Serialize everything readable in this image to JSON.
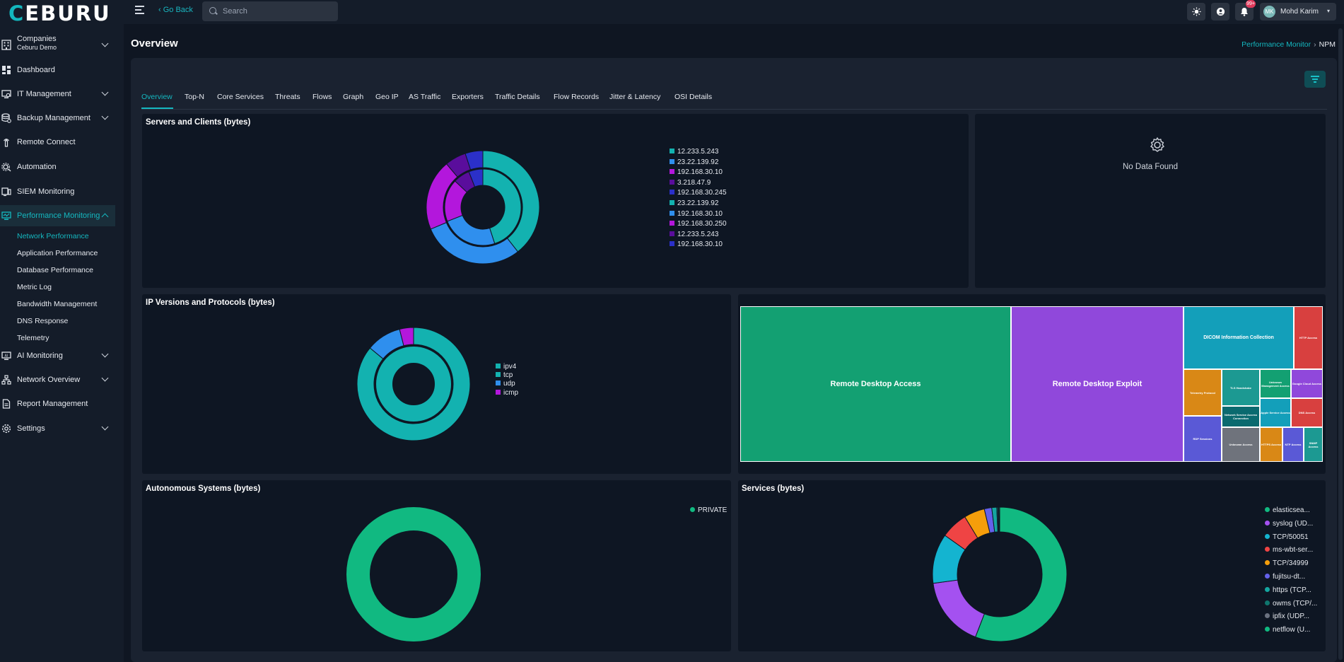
{
  "app": {
    "logo_text": "CEBURU",
    "accent": "#14b8c0"
  },
  "topbar": {
    "go_back": "‹ Go Back",
    "search_placeholder": "Search",
    "notification_count": "99+",
    "user": {
      "initials": "MK",
      "name": "Mohd Karim"
    }
  },
  "sidebar": {
    "company": {
      "title": "Companies",
      "value": "Ceburu Demo"
    },
    "items": [
      {
        "label": "Dashboard"
      },
      {
        "label": "IT Management"
      },
      {
        "label": "Backup Management"
      },
      {
        "label": "Remote Connect"
      },
      {
        "label": "Automation"
      },
      {
        "label": "SIEM Monitoring"
      },
      {
        "label": "Performance Monitoring"
      },
      {
        "label": "AI Monitoring"
      },
      {
        "label": "Network Overview"
      },
      {
        "label": "Report Management"
      },
      {
        "label": "Settings"
      }
    ],
    "sub_items": [
      {
        "label": "Network Performance"
      },
      {
        "label": "Application Performance"
      },
      {
        "label": "Database Performance"
      },
      {
        "label": "Metric Log"
      },
      {
        "label": "Bandwidth Management"
      },
      {
        "label": "DNS Response"
      },
      {
        "label": "Telemetry"
      }
    ]
  },
  "page": {
    "title": "Overview",
    "breadcrumb": {
      "parent": "Performance Monitor",
      "sep": "›",
      "current": "NPM"
    }
  },
  "tabs": [
    "Overview",
    "Top-N",
    "Core Services",
    "Threats",
    "Flows",
    "Graph",
    "Geo IP",
    "AS Traffic",
    "Exporters",
    "Traffic Details",
    "Flow Records",
    "Jitter & Latency",
    "OSI Details"
  ],
  "cards": {
    "servers_clients": {
      "title": "Servers and Clients (bytes)"
    },
    "no_data": {
      "message": "No Data Found"
    },
    "ip_versions": {
      "title": "IP Versions and Protocols (bytes)"
    },
    "autonomous": {
      "title": "Autonomous Systems (bytes)"
    },
    "services": {
      "title": "Services (bytes)"
    }
  },
  "chart_data": [
    {
      "type": "pie",
      "title": "Servers and Clients (bytes)",
      "style": "nested-donut",
      "legend_position": "right",
      "legend": [
        {
          "label": "12.233.5.243",
          "color": "#13b2b0"
        },
        {
          "label": "23.22.139.92",
          "color": "#2f8fee"
        },
        {
          "label": "192.168.30.10",
          "color": "#b317dc"
        },
        {
          "label": "3.218.47.9",
          "color": "#5a0d9c"
        },
        {
          "label": "192.168.30.245",
          "color": "#2b30c9"
        },
        {
          "label": "23.22.139.92",
          "color": "#13b2b0"
        },
        {
          "label": "192.168.30.10",
          "color": "#2f8fee"
        },
        {
          "label": "192.168.30.250",
          "color": "#b317dc"
        },
        {
          "label": "12.233.5.243",
          "color": "#5a0d9c"
        },
        {
          "label": "192.168.30.10",
          "color": "#2b30c9"
        }
      ],
      "outer_ring": [
        {
          "value": 39,
          "color": "#13b2b0"
        },
        {
          "value": 29,
          "color": "#2f8fee"
        },
        {
          "value": 20,
          "color": "#b317dc"
        },
        {
          "value": 6,
          "color": "#5a0d9c"
        },
        {
          "value": 5,
          "color": "#2b30c9"
        }
      ],
      "inner_ring": [
        {
          "value": 45,
          "color": "#13b2b0"
        },
        {
          "value": 24,
          "color": "#2f8fee"
        },
        {
          "value": 18,
          "color": "#b317dc"
        },
        {
          "value": 7,
          "color": "#5a0d9c"
        },
        {
          "value": 6,
          "color": "#2b30c9"
        }
      ]
    },
    {
      "type": "pie",
      "title": "IP Versions and Protocols (bytes)",
      "style": "nested-donut",
      "legend_position": "right",
      "legend": [
        {
          "label": "ipv4",
          "color": "#13b2b0"
        },
        {
          "label": "tcp",
          "color": "#13b2b0"
        },
        {
          "label": "udp",
          "color": "#2f8fee"
        },
        {
          "label": "icmp",
          "color": "#b317dc"
        }
      ],
      "outer_ring": [
        {
          "value": 86,
          "color": "#13b2b0"
        },
        {
          "value": 10,
          "color": "#2f8fee"
        },
        {
          "value": 4,
          "color": "#b317dc"
        }
      ],
      "inner_ring": [
        {
          "value": 100,
          "color": "#13b2b0"
        }
      ]
    },
    {
      "type": "heatmap",
      "style": "treemap",
      "cells": [
        {
          "label": "Remote Desktop Access",
          "value": 40,
          "color": "#13a072"
        },
        {
          "label": "Remote Desktop Exploit",
          "value": 26,
          "color": "#9048db"
        },
        {
          "label": "DICOM Information Collection",
          "value": 8,
          "color": "#139fba"
        },
        {
          "label": "HTTP Access",
          "value": 2.4,
          "color": "#d8403f"
        },
        {
          "label": "Telemetry Protocol",
          "value": 2.2,
          "color": "#d98816"
        },
        {
          "label": "TLS Handshake",
          "value": 2.0,
          "color": "#1c9992"
        },
        {
          "label": "Unknown Management Access",
          "value": 1.5,
          "color": "#13a072"
        },
        {
          "label": "Google Cloud Access",
          "value": 1.5,
          "color": "#9048db"
        },
        {
          "label": "Network Service Access Connection",
          "value": 1.6,
          "color": "#0b6a6f"
        },
        {
          "label": "Apple Service Access",
          "value": 1.5,
          "color": "#139fba"
        },
        {
          "label": "DNS Access",
          "value": 1.5,
          "color": "#d8403f"
        },
        {
          "label": "RDP Sessions",
          "value": 2.2,
          "color": "#5a59d6"
        },
        {
          "label": "Unknown Access",
          "value": 1.3,
          "color": "#6f737c"
        },
        {
          "label": "HTTPS Access",
          "value": 1.1,
          "color": "#d98816"
        },
        {
          "label": "NTP Access",
          "value": 1.0,
          "color": "#5a59d6"
        },
        {
          "label": "SNMP Access",
          "value": 1.0,
          "color": "#1c9992"
        }
      ]
    },
    {
      "type": "pie",
      "title": "Autonomous Systems (bytes)",
      "style": "donut",
      "legend_position": "top-right",
      "slices": [
        {
          "label": "PRIVATE",
          "value": 100,
          "color": "#11b981"
        }
      ]
    },
    {
      "type": "pie",
      "title": "Services (bytes)",
      "style": "donut",
      "legend_position": "right",
      "slices": [
        {
          "label": "elasticsea...",
          "value": 56,
          "color": "#11b981"
        },
        {
          "label": "syslog (UD...",
          "value": 17,
          "color": "#a451f0"
        },
        {
          "label": "TCP/50051",
          "value": 12,
          "color": "#14b4d0"
        },
        {
          "label": "ms-wbt-ser...",
          "value": 6.5,
          "color": "#ef4444"
        },
        {
          "label": "TCP/34999",
          "value": 5,
          "color": "#f59e0b"
        },
        {
          "label": "fujitsu-dt...",
          "value": 1.8,
          "color": "#6461ea"
        },
        {
          "label": "https (TCP...",
          "value": 1.2,
          "color": "#14a6a0"
        },
        {
          "label": "owms (TCP/...",
          "value": 0.3,
          "color": "#0f766e"
        },
        {
          "label": "ipfix (UDP...",
          "value": 0.2,
          "color": "#6b7280"
        },
        {
          "label": "netflow (U...",
          "value": 0.2,
          "color": "#10b981"
        }
      ]
    }
  ]
}
